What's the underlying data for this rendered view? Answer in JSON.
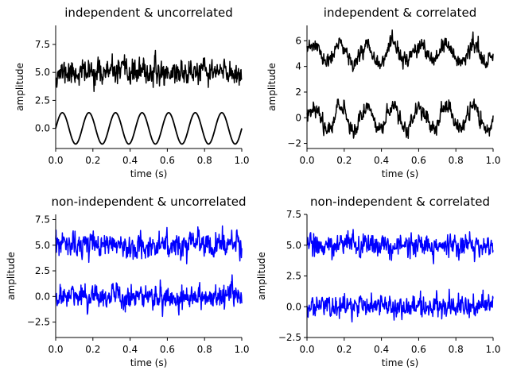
{
  "chart_data": [
    {
      "type": "line",
      "title": "independent & uncorrelated",
      "xlabel": "time (s)",
      "ylabel": "amplitude",
      "xlim": [
        0,
        1
      ],
      "ylim": [
        -1.8,
        9.2
      ],
      "xticks": [
        0.0,
        0.2,
        0.4,
        0.6,
        0.8,
        1.0
      ],
      "xtick_labels": [
        "0.0",
        "0.2",
        "0.4",
        "0.6",
        "0.8",
        "1.0"
      ],
      "yticks": [
        0.0,
        2.5,
        5.0,
        7.5
      ],
      "ytick_labels": [
        "0.0",
        "2.5",
        "5.0",
        "7.5"
      ],
      "color": "#000000",
      "series": [
        {
          "kind": "noise",
          "offset": 5.0,
          "amplitude": 1.6,
          "sine_amp": 0,
          "freq": 0,
          "seed": 11
        },
        {
          "kind": "sine",
          "offset": 0.0,
          "amplitude": 0,
          "sine_amp": 1.4,
          "freq": 7,
          "seed": 0
        }
      ]
    },
    {
      "type": "line",
      "title": "independent & correlated",
      "xlabel": "time (s)",
      "ylabel": "amplitude",
      "xlim": [
        0,
        1
      ],
      "ylim": [
        -2.4,
        7.2
      ],
      "xticks": [
        0.0,
        0.2,
        0.4,
        0.6,
        0.8,
        1.0
      ],
      "xtick_labels": [
        "0.0",
        "0.2",
        "0.4",
        "0.6",
        "0.8",
        "1.0"
      ],
      "yticks": [
        -2,
        0,
        2,
        4,
        6
      ],
      "ytick_labels": [
        "−2",
        "0",
        "2",
        "4",
        "6"
      ],
      "color": "#000000",
      "series": [
        {
          "kind": "noise+sine",
          "offset": 5.0,
          "amplitude": 0.9,
          "sine_amp": 0.7,
          "freq": 7,
          "seed": 23
        },
        {
          "kind": "noise+sine",
          "offset": 0.0,
          "amplitude": 0.9,
          "sine_amp": 0.9,
          "freq": 7,
          "seed": 37
        }
      ]
    },
    {
      "type": "line",
      "title": "non-independent & uncorrelated",
      "xlabel": "time (s)",
      "ylabel": "amplitude",
      "xlim": [
        0,
        1
      ],
      "ylim": [
        -4.0,
        8.0
      ],
      "xticks": [
        0.0,
        0.2,
        0.4,
        0.6,
        0.8,
        1.0
      ],
      "xtick_labels": [
        "0.0",
        "0.2",
        "0.4",
        "0.6",
        "0.8",
        "1.0"
      ],
      "yticks": [
        -2.5,
        0.0,
        2.5,
        5.0,
        7.5
      ],
      "ytick_labels": [
        "−2.5",
        "0.0",
        "2.5",
        "5.0",
        "7.5"
      ],
      "color": "#0000ff",
      "series": [
        {
          "kind": "noise",
          "offset": 5.0,
          "amplitude": 1.7,
          "sine_amp": 0,
          "freq": 0,
          "seed": 53
        },
        {
          "kind": "noise",
          "offset": 0.0,
          "amplitude": 1.7,
          "sine_amp": 0,
          "freq": 0,
          "seed": 71
        }
      ]
    },
    {
      "type": "line",
      "title": "non-independent & correlated",
      "xlabel": "time (s)",
      "ylabel": "amplitude",
      "xlim": [
        0,
        1
      ],
      "ylim": [
        -2.5,
        7.5
      ],
      "xticks": [
        0.0,
        0.2,
        0.4,
        0.6,
        0.8,
        1.0
      ],
      "xtick_labels": [
        "0.0",
        "0.2",
        "0.4",
        "0.6",
        "0.8",
        "1.0"
      ],
      "yticks": [
        -2.5,
        0.0,
        2.5,
        5.0,
        7.5
      ],
      "ytick_labels": [
        "−2.5",
        "0.0",
        "2.5",
        "5.0",
        "7.5"
      ],
      "color": "#0000ff",
      "series": [
        {
          "kind": "noise",
          "offset": 5.0,
          "amplitude": 1.3,
          "sine_amp": 0,
          "freq": 0,
          "seed": 89
        },
        {
          "kind": "noise",
          "offset": 0.0,
          "amplitude": 1.3,
          "sine_amp": 0,
          "freq": 0,
          "seed": 97
        }
      ]
    }
  ]
}
